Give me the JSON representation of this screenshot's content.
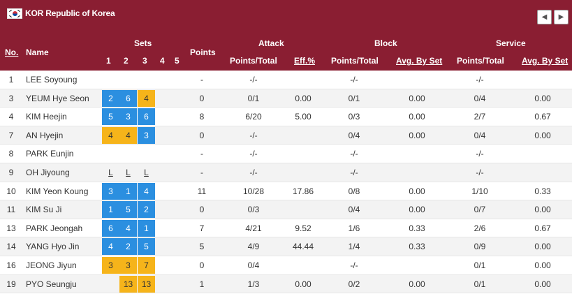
{
  "team": {
    "title": "KOR Republic of Korea",
    "flag_icon": "south-korea-flag-icon"
  },
  "nav": {
    "prev": "◀",
    "next": "▶"
  },
  "headers": {
    "no": "No.",
    "name": "Name",
    "sets": "Sets",
    "set_cols": [
      "1",
      "2",
      "3",
      "4",
      "5"
    ],
    "points": "Points",
    "attack": "Attack",
    "block": "Block",
    "service": "Service",
    "attack_pts": "Points/Total",
    "attack_eff": "Eff.%",
    "block_pts": "Points/Total",
    "block_avg": "Avg. By Set",
    "service_pts": "Points/Total",
    "service_avg": "Avg. By Set"
  },
  "colors": {
    "header_bg": "#8a1e32",
    "set_blue": "#2b8fe0",
    "set_yellow": "#f6b41a"
  },
  "players": [
    {
      "no": "1",
      "name": "LEE Soyoung",
      "sets": [],
      "points": "-",
      "attack_pt": "-/-",
      "attack_eff": "",
      "block_pt": "-/-",
      "block_avg": "",
      "service_pt": "-/-",
      "service_avg": ""
    },
    {
      "no": "3",
      "name": "YEUM Hye Seon",
      "sets": [
        {
          "v": "2",
          "c": "blue"
        },
        {
          "v": "6",
          "c": "blue"
        },
        {
          "v": "4",
          "c": "yellow"
        }
      ],
      "points": "0",
      "attack_pt": "0/1",
      "attack_eff": "0.00",
      "block_pt": "0/1",
      "block_avg": "0.00",
      "service_pt": "0/4",
      "service_avg": "0.00"
    },
    {
      "no": "4",
      "name": "KIM Heejin",
      "sets": [
        {
          "v": "5",
          "c": "blue"
        },
        {
          "v": "3",
          "c": "blue"
        },
        {
          "v": "6",
          "c": "blue"
        }
      ],
      "points": "8",
      "attack_pt": "6/20",
      "attack_eff": "5.00",
      "block_pt": "0/3",
      "block_avg": "0.00",
      "service_pt": "2/7",
      "service_avg": "0.67"
    },
    {
      "no": "7",
      "name": "AN Hyejin",
      "sets": [
        {
          "v": "4",
          "c": "yellow"
        },
        {
          "v": "4",
          "c": "yellow"
        },
        {
          "v": "3",
          "c": "blue"
        }
      ],
      "points": "0",
      "attack_pt": "-/-",
      "attack_eff": "",
      "block_pt": "0/4",
      "block_avg": "0.00",
      "service_pt": "0/4",
      "service_avg": "0.00"
    },
    {
      "no": "8",
      "name": "PARK Eunjin",
      "sets": [],
      "points": "-",
      "attack_pt": "-/-",
      "attack_eff": "",
      "block_pt": "-/-",
      "block_avg": "",
      "service_pt": "-/-",
      "service_avg": ""
    },
    {
      "no": "9",
      "name": "OH Jiyoung",
      "sets": [
        {
          "v": "L",
          "c": "plain"
        },
        {
          "v": "L",
          "c": "plain"
        },
        {
          "v": "L",
          "c": "plain"
        }
      ],
      "points": "-",
      "attack_pt": "-/-",
      "attack_eff": "",
      "block_pt": "-/-",
      "block_avg": "",
      "service_pt": "-/-",
      "service_avg": ""
    },
    {
      "no": "10",
      "name": "KIM Yeon Koung",
      "sets": [
        {
          "v": "3",
          "c": "blue"
        },
        {
          "v": "1",
          "c": "blue"
        },
        {
          "v": "4",
          "c": "blue"
        }
      ],
      "points": "11",
      "attack_pt": "10/28",
      "attack_eff": "17.86",
      "block_pt": "0/8",
      "block_avg": "0.00",
      "service_pt": "1/10",
      "service_avg": "0.33"
    },
    {
      "no": "11",
      "name": "KIM Su Ji",
      "sets": [
        {
          "v": "1",
          "c": "blue"
        },
        {
          "v": "5",
          "c": "blue"
        },
        {
          "v": "2",
          "c": "blue"
        }
      ],
      "points": "0",
      "attack_pt": "0/3",
      "attack_eff": "",
      "block_pt": "0/4",
      "block_avg": "0.00",
      "service_pt": "0/7",
      "service_avg": "0.00"
    },
    {
      "no": "13",
      "name": "PARK Jeongah",
      "sets": [
        {
          "v": "6",
          "c": "blue"
        },
        {
          "v": "4",
          "c": "blue"
        },
        {
          "v": "1",
          "c": "blue"
        }
      ],
      "points": "7",
      "attack_pt": "4/21",
      "attack_eff": "9.52",
      "block_pt": "1/6",
      "block_avg": "0.33",
      "service_pt": "2/6",
      "service_avg": "0.67"
    },
    {
      "no": "14",
      "name": "YANG Hyo Jin",
      "sets": [
        {
          "v": "4",
          "c": "blue"
        },
        {
          "v": "2",
          "c": "blue"
        },
        {
          "v": "5",
          "c": "blue"
        }
      ],
      "points": "5",
      "attack_pt": "4/9",
      "attack_eff": "44.44",
      "block_pt": "1/4",
      "block_avg": "0.33",
      "service_pt": "0/9",
      "service_avg": "0.00"
    },
    {
      "no": "16",
      "name": "JEONG Jiyun",
      "sets": [
        {
          "v": "3",
          "c": "yellow"
        },
        {
          "v": "3",
          "c": "yellow"
        },
        {
          "v": "7",
          "c": "yellow"
        }
      ],
      "points": "0",
      "attack_pt": "0/4",
      "attack_eff": "",
      "block_pt": "-/-",
      "block_avg": "",
      "service_pt": "0/1",
      "service_avg": "0.00"
    },
    {
      "no": "19",
      "name": "PYO Seungju",
      "sets": [
        {
          "v": "",
          "c": "none"
        },
        {
          "v": "13",
          "c": "yellow"
        },
        {
          "v": "13",
          "c": "yellow"
        }
      ],
      "points": "1",
      "attack_pt": "1/3",
      "attack_eff": "0.00",
      "block_pt": "0/2",
      "block_avg": "0.00",
      "service_pt": "0/1",
      "service_avg": "0.00"
    }
  ]
}
